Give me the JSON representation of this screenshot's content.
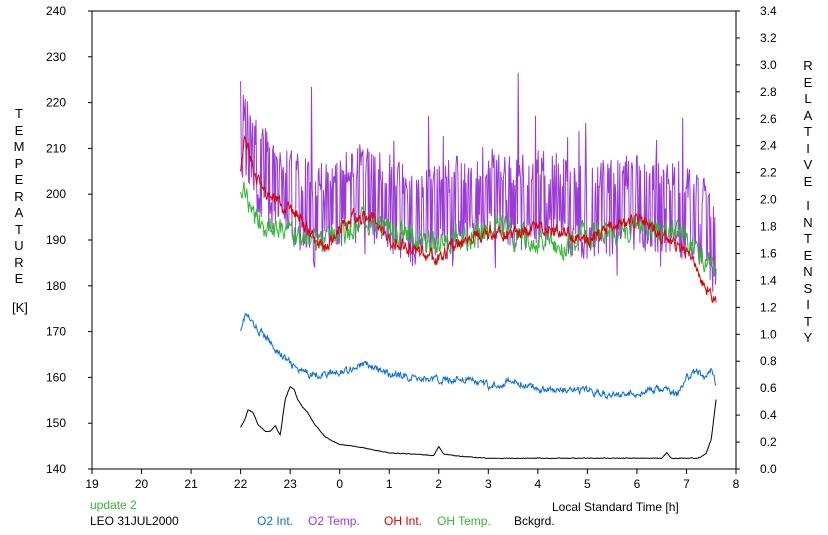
{
  "chart_data": {
    "type": "line",
    "x_ticks": [
      "19",
      "20",
      "21",
      "22",
      "23",
      "0",
      "1",
      "2",
      "3",
      "4",
      "5",
      "6",
      "7",
      "8"
    ],
    "xlabel": "Local Standard Time [h]",
    "left_axis": {
      "label_letters": [
        "T",
        "E",
        "M",
        "P",
        "E",
        "R",
        "A",
        "T",
        "U",
        "R",
        "E"
      ],
      "unit": "[K]",
      "ylim": [
        140,
        240
      ],
      "ticks": [
        140,
        150,
        160,
        170,
        180,
        190,
        200,
        210,
        220,
        230,
        240
      ]
    },
    "right_axis": {
      "label_word1": [
        "R",
        "E",
        "L",
        "A",
        "T",
        "I",
        "V",
        "E"
      ],
      "label_word2": [
        "I",
        "N",
        "T",
        "E",
        "N",
        "S",
        "I",
        "T",
        "Y"
      ],
      "ylim": [
        0.0,
        3.4
      ],
      "ticks": [
        "0.0",
        "0.2",
        "0.4",
        "0.6",
        "0.8",
        "1.0",
        "1.2",
        "1.4",
        "1.6",
        "1.8",
        "2.0",
        "2.2",
        "2.4",
        "2.6",
        "2.8",
        "3.0",
        "3.2",
        "3.4"
      ]
    },
    "grid": false,
    "series": [
      {
        "name": "O2 Int.",
        "color": "#0a6fd8",
        "axis": "right",
        "noise": 0.045,
        "x": [
          22.0,
          22.1,
          22.3,
          22.5,
          22.8,
          23.2,
          23.6,
          24.0,
          24.5,
          25.0,
          25.5,
          26.0,
          26.5,
          27.0,
          27.5,
          28.0,
          28.5,
          29.0,
          29.5,
          30.0,
          30.5,
          30.8,
          31.0,
          31.2,
          31.4,
          31.5,
          31.6
        ],
        "y": [
          1.05,
          1.15,
          1.05,
          0.98,
          0.85,
          0.72,
          0.7,
          0.72,
          0.78,
          0.7,
          0.68,
          0.66,
          0.67,
          0.62,
          0.65,
          0.6,
          0.58,
          0.58,
          0.55,
          0.56,
          0.6,
          0.55,
          0.68,
          0.72,
          0.68,
          0.75,
          0.62
        ]
      },
      {
        "name": "O2 Temp.",
        "color": "#9a3ad6",
        "axis": "left",
        "noise": 11,
        "x": [
          22.0,
          22.2,
          22.5,
          23.0,
          23.5,
          24.0,
          24.5,
          25.0,
          25.5,
          26.0,
          26.5,
          27.0,
          27.5,
          28.0,
          28.5,
          29.0,
          29.5,
          30.0,
          30.5,
          31.0,
          31.3,
          31.6
        ],
        "y": [
          214,
          208,
          203,
          200,
          195,
          198,
          200,
          198,
          195,
          196,
          198,
          200,
          197,
          199,
          198,
          196,
          197,
          198,
          197,
          195,
          194,
          188
        ]
      },
      {
        "name": "OH Int.",
        "color": "#dd0000",
        "axis": "left",
        "noise": 2.5,
        "x": [
          22.0,
          22.1,
          22.3,
          22.6,
          23.0,
          23.3,
          23.7,
          24.0,
          24.3,
          24.7,
          25.0,
          25.5,
          26.0,
          26.5,
          27.0,
          27.5,
          28.0,
          28.5,
          29.0,
          29.5,
          30.0,
          30.5,
          31.0,
          31.3,
          31.5,
          31.6
        ],
        "y": [
          206,
          212,
          204,
          199,
          197,
          193,
          188,
          192,
          195,
          195,
          190,
          188,
          186,
          190,
          192,
          191,
          193,
          192,
          190,
          193,
          195,
          191,
          187,
          181,
          178,
          177
        ]
      },
      {
        "name": "OH Temp.",
        "color": "#33b833",
        "axis": "left",
        "noise": 4.5,
        "x": [
          22.0,
          22.2,
          22.5,
          23.0,
          23.5,
          24.0,
          24.5,
          25.0,
          25.5,
          26.0,
          26.5,
          27.0,
          27.5,
          28.0,
          28.5,
          29.0,
          29.5,
          30.0,
          30.5,
          31.0,
          31.3,
          31.6
        ],
        "y": [
          202,
          197,
          193,
          191,
          189,
          191,
          194,
          192,
          190,
          189,
          190,
          193,
          192,
          190,
          189,
          191,
          192,
          193,
          192,
          190,
          187,
          182
        ]
      },
      {
        "name": "Bckgrd.",
        "color": "#000000",
        "axis": "right",
        "noise": 0.004,
        "x": [
          22.0,
          22.08,
          22.15,
          22.25,
          22.35,
          22.5,
          22.6,
          22.7,
          22.8,
          22.9,
          23.0,
          23.08,
          23.15,
          23.25,
          23.35,
          23.5,
          23.7,
          24.0,
          24.3,
          24.7,
          25.0,
          25.5,
          25.9,
          26.0,
          26.1,
          26.3,
          26.6,
          27.0,
          27.5,
          28.0,
          28.5,
          29.0,
          29.5,
          30.0,
          30.5,
          30.6,
          30.7,
          31.0,
          31.2,
          31.3,
          31.4,
          31.5,
          31.6
        ],
        "y": [
          0.31,
          0.36,
          0.44,
          0.42,
          0.33,
          0.28,
          0.28,
          0.32,
          0.25,
          0.52,
          0.61,
          0.59,
          0.52,
          0.46,
          0.42,
          0.33,
          0.24,
          0.18,
          0.17,
          0.14,
          0.12,
          0.11,
          0.1,
          0.17,
          0.11,
          0.1,
          0.09,
          0.08,
          0.08,
          0.08,
          0.08,
          0.08,
          0.08,
          0.08,
          0.08,
          0.12,
          0.08,
          0.08,
          0.08,
          0.09,
          0.12,
          0.22,
          0.52
        ]
      }
    ],
    "legend_placement": "bottom"
  },
  "footer": {
    "update": "update 2",
    "station": "LEO 31JUL2000",
    "legend_colors": {
      "o2_int": "#0a6fd8",
      "o2_temp": "#9a3ad6",
      "oh_int": "#dd0000",
      "oh_temp": "#33b833",
      "bckgrd": "#000000"
    },
    "update_color": "#33b833"
  }
}
